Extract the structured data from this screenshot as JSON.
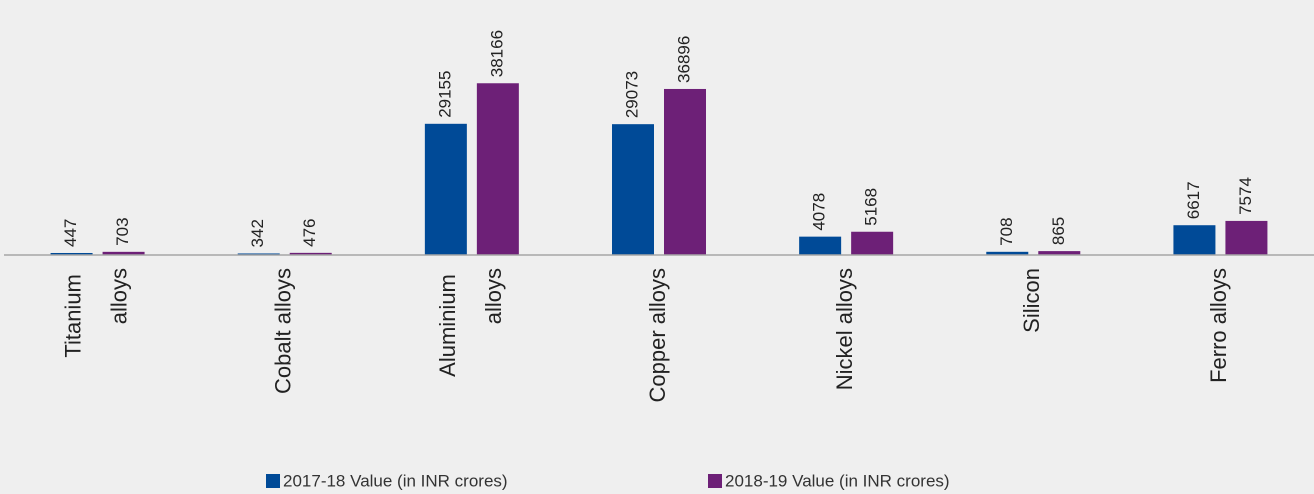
{
  "chart_data": {
    "type": "bar",
    "categories": [
      "Titanium alloys",
      "Cobalt alloys",
      "Aluminium alloys",
      "Copper alloys",
      "Nickel alloys",
      "Silicon",
      "Ferro alloys"
    ],
    "series": [
      {
        "name": "2017-18 Value (in INR crores)",
        "color": "#004a97",
        "values": [
          447,
          342,
          29155,
          29073,
          4078,
          708,
          6617
        ]
      },
      {
        "name": "2018-19 Value (in INR crores)",
        "color": "#6d2077",
        "values": [
          703,
          476,
          38166,
          36896,
          5168,
          865,
          7574
        ]
      }
    ],
    "ylim": [
      0,
      40000
    ]
  }
}
